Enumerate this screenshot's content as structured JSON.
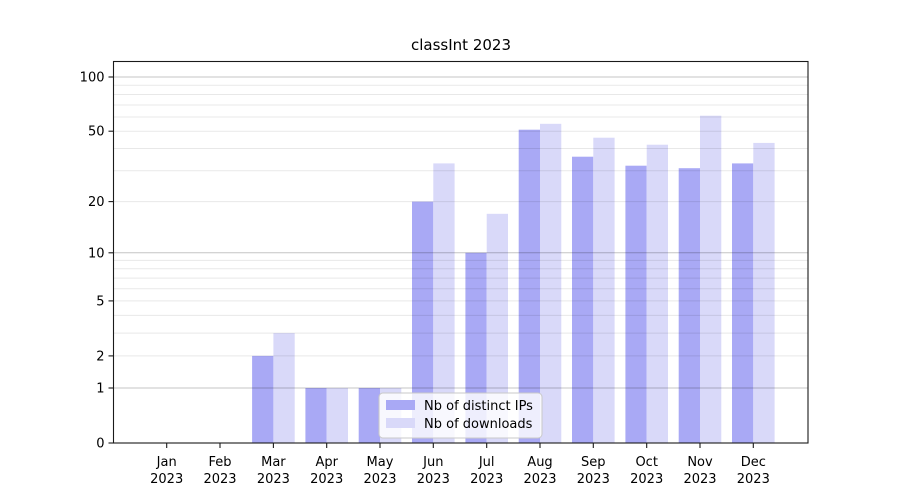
{
  "chart_data": {
    "type": "bar",
    "title": "classInt 2023",
    "categories": [
      "Jan",
      "Feb",
      "Mar",
      "Apr",
      "May",
      "Jun",
      "Jul",
      "Aug",
      "Sep",
      "Oct",
      "Nov",
      "Dec"
    ],
    "year": "2023",
    "series": [
      {
        "name": "Nb of distinct IPs",
        "color": "#a9a9f5",
        "values": [
          0,
          0,
          2,
          1,
          1,
          20,
          10,
          51,
          36,
          32,
          31,
          33
        ]
      },
      {
        "name": "Nb of downloads",
        "color": "#d9d9f9",
        "values": [
          0,
          0,
          3,
          1,
          1,
          33,
          17,
          55,
          46,
          42,
          61,
          43
        ]
      }
    ],
    "yscale": "log1p",
    "ylim": [
      0,
      121
    ],
    "ytick_values": [
      0,
      1,
      2,
      5,
      10,
      20,
      50,
      100
    ],
    "ytick_labels": [
      "0",
      "1",
      "2",
      "5",
      "10",
      "20",
      "50",
      "100"
    ],
    "grid_minor_values": [
      2,
      3,
      4,
      5,
      6,
      7,
      8,
      9,
      20,
      30,
      40,
      50,
      60,
      70,
      80,
      90
    ],
    "grid_major_values": [
      1,
      10,
      100
    ],
    "legend": {
      "labels": [
        "Nb of distinct IPs",
        "Nb of downloads"
      ]
    },
    "colors": {
      "spine": "#1a1a1a",
      "grid_minor": "rgba(0,0,0,0.09)",
      "grid_major": "rgba(0,0,0,0.23)",
      "legend_border": "#c9c9c9",
      "legend_bg": "rgba(255,255,255,0.8)",
      "text": "#000000"
    }
  }
}
